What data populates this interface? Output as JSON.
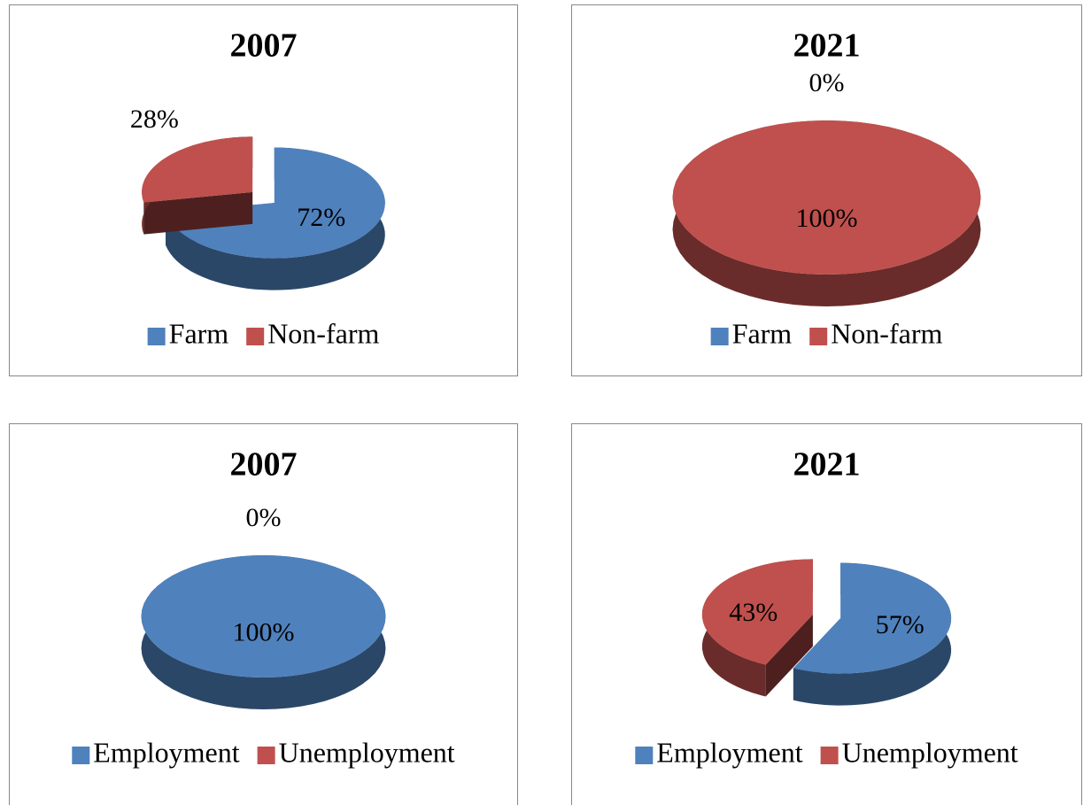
{
  "chart_data": [
    {
      "type": "pie",
      "title": "2007",
      "categories": [
        "Farm",
        "Non-farm"
      ],
      "values": [
        72,
        28
      ],
      "value_labels": [
        "72%",
        "28%"
      ],
      "colors": [
        "#4f81bd",
        "#c0504d"
      ],
      "exploded": true,
      "legend": "bottom"
    },
    {
      "type": "pie",
      "title": "2021",
      "categories": [
        "Farm",
        "Non-farm"
      ],
      "values": [
        0,
        100
      ],
      "value_labels": [
        "0%",
        "100%"
      ],
      "colors": [
        "#4f81bd",
        "#c0504d"
      ],
      "exploded": false,
      "legend": "bottom"
    },
    {
      "type": "pie",
      "title": "2007",
      "categories": [
        "Employment",
        "Unemployment"
      ],
      "values": [
        100,
        0
      ],
      "value_labels": [
        "100%",
        "0%"
      ],
      "colors": [
        "#4f81bd",
        "#c0504d"
      ],
      "exploded": false,
      "legend": "bottom"
    },
    {
      "type": "pie",
      "title": "2021",
      "categories": [
        "Employment",
        "Unemployment"
      ],
      "values": [
        57,
        43
      ],
      "value_labels": [
        "57%",
        "43%"
      ],
      "colors": [
        "#4f81bd",
        "#c0504d"
      ],
      "exploded": true,
      "legend": "bottom"
    }
  ]
}
